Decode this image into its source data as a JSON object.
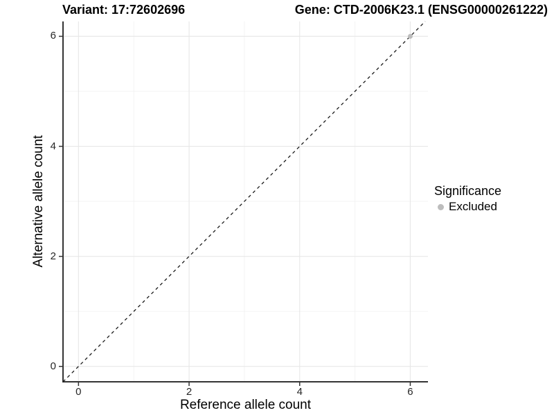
{
  "titles": {
    "variant": "Variant: 17:72602696",
    "gene": "Gene: CTD-2006K23.1 (ENSG00000261222)"
  },
  "legend": {
    "title": "Significance",
    "items": [
      {
        "label": "Excluded",
        "color": "#bdbdbd"
      }
    ]
  },
  "chart_data": {
    "type": "scatter",
    "title": "Variant: 17:72602696 — Gene: CTD-2006K23.1 (ENSG00000261222)",
    "xlabel": "Reference allele count",
    "ylabel": "Alternative allele count",
    "xlim": [
      -0.28,
      6.32
    ],
    "ylim": [
      -0.28,
      6.27
    ],
    "x_ticks": [
      0,
      2,
      4,
      6
    ],
    "y_ticks": [
      0,
      2,
      4,
      6
    ],
    "x_minor_ticks": [
      1,
      3,
      5
    ],
    "y_minor_ticks": [
      1,
      3,
      5
    ],
    "grid": true,
    "legend_position": "right",
    "legend_title": "Significance",
    "series": [
      {
        "name": "Excluded",
        "color": "#bdbdbd",
        "points": [
          {
            "x": 6,
            "y": 6
          }
        ]
      }
    ],
    "reference_line": {
      "kind": "identity",
      "slope": 1,
      "intercept": 0,
      "style": "dashed",
      "color": "#1a1a1a"
    },
    "colors": {
      "grid_major": "#e7e7e7",
      "grid_minor": "#f2f2f2",
      "axis_line": "#333333",
      "tick_mark": "#333333",
      "tick_text": "#262626",
      "point_excluded": "#bdbdbd"
    }
  }
}
